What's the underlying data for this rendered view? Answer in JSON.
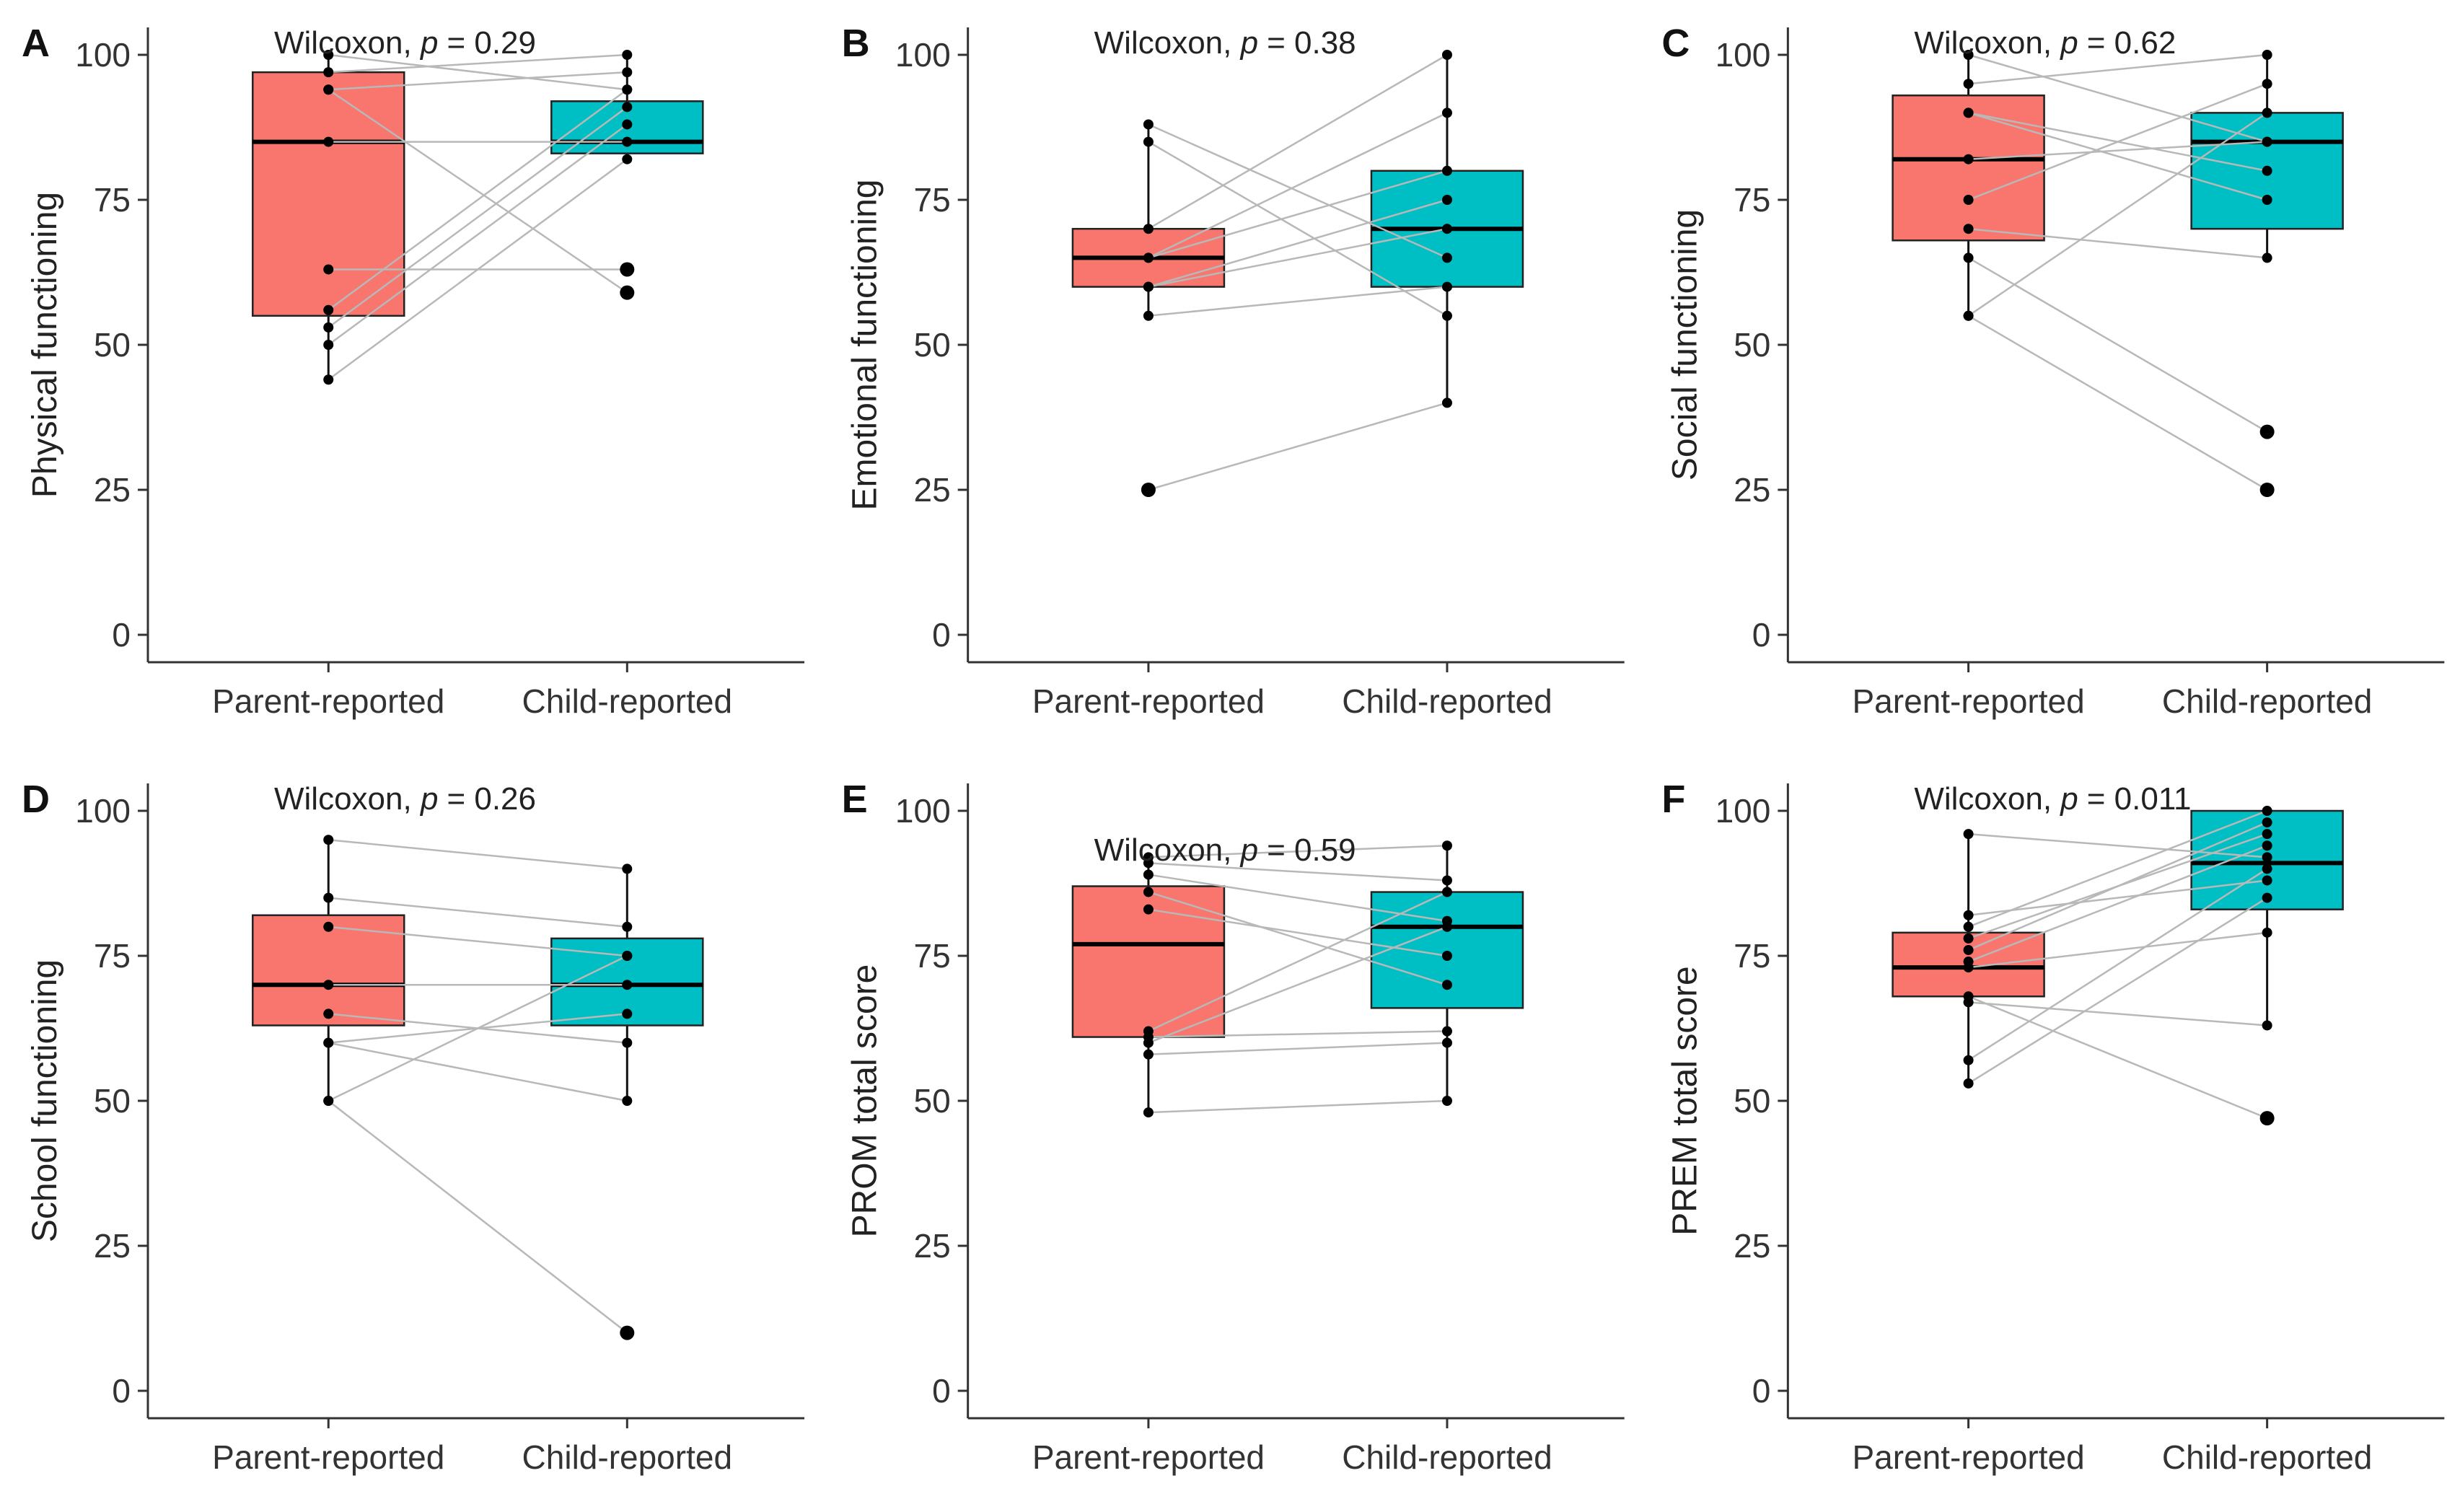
{
  "chart_data": [
    {
      "panel": "A",
      "type": "boxplot",
      "ylabel": "Physical functioning",
      "categories": [
        "Parent-reported",
        "Child-reported"
      ],
      "ylim": [
        0,
        100
      ],
      "yticks": [
        0,
        25,
        50,
        75,
        100
      ],
      "annotation_prefix": "Wilcoxon, ",
      "p_symbol": "p",
      "p_value": "= 0.29",
      "series_colors": [
        "#F8766D",
        "#00BFC4"
      ],
      "boxes": [
        {
          "category": "Parent-reported",
          "q1": 55,
          "median": 85,
          "q3": 97,
          "whisker_low": 44,
          "whisker_high": 100
        },
        {
          "category": "Child-reported",
          "q1": 83,
          "median": 85,
          "q3": 92,
          "whisker_low": 82,
          "whisker_high": 100
        }
      ],
      "outliers": [
        {
          "category": "Child-reported",
          "value": 63
        },
        {
          "category": "Child-reported",
          "value": 59
        }
      ],
      "pairs": [
        [
          97,
          100
        ],
        [
          94,
          97
        ],
        [
          85,
          85
        ],
        [
          63,
          63
        ],
        [
          56,
          94
        ],
        [
          53,
          91
        ],
        [
          50,
          88
        ],
        [
          44,
          82
        ],
        [
          100,
          94
        ],
        [
          94,
          59
        ]
      ]
    },
    {
      "panel": "B",
      "type": "boxplot",
      "ylabel": "Emotional functioning",
      "categories": [
        "Parent-reported",
        "Child-reported"
      ],
      "ylim": [
        0,
        100
      ],
      "yticks": [
        0,
        25,
        50,
        75,
        100
      ],
      "annotation_prefix": "Wilcoxon, ",
      "p_symbol": "p",
      "p_value": "= 0.38",
      "series_colors": [
        "#F8766D",
        "#00BFC4"
      ],
      "boxes": [
        {
          "category": "Parent-reported",
          "q1": 60,
          "median": 65,
          "q3": 70,
          "whisker_low": 55,
          "whisker_high": 88
        },
        {
          "category": "Child-reported",
          "q1": 60,
          "median": 70,
          "q3": 80,
          "whisker_low": 40,
          "whisker_high": 100
        }
      ],
      "outliers": [
        {
          "category": "Parent-reported",
          "value": 25
        }
      ],
      "pairs": [
        [
          88,
          65
        ],
        [
          85,
          55
        ],
        [
          70,
          100
        ],
        [
          65,
          90
        ],
        [
          65,
          80
        ],
        [
          60,
          70
        ],
        [
          60,
          75
        ],
        [
          55,
          60
        ],
        [
          25,
          40
        ]
      ]
    },
    {
      "panel": "C",
      "type": "boxplot",
      "ylabel": "Social functioning",
      "categories": [
        "Parent-reported",
        "Child-reported"
      ],
      "ylim": [
        0,
        100
      ],
      "yticks": [
        0,
        25,
        50,
        75,
        100
      ],
      "annotation_prefix": "Wilcoxon, ",
      "p_symbol": "p",
      "p_value": "= 0.62",
      "series_colors": [
        "#F8766D",
        "#00BFC4"
      ],
      "boxes": [
        {
          "category": "Parent-reported",
          "q1": 68,
          "median": 82,
          "q3": 93,
          "whisker_low": 55,
          "whisker_high": 100
        },
        {
          "category": "Child-reported",
          "q1": 70,
          "median": 85,
          "q3": 90,
          "whisker_low": 65,
          "whisker_high": 100
        }
      ],
      "outliers": [
        {
          "category": "Child-reported",
          "value": 35
        },
        {
          "category": "Child-reported",
          "value": 25
        }
      ],
      "pairs": [
        [
          100,
          85
        ],
        [
          95,
          100
        ],
        [
          90,
          80
        ],
        [
          82,
          85
        ],
        [
          75,
          95
        ],
        [
          70,
          65
        ],
        [
          65,
          35
        ],
        [
          55,
          25
        ],
        [
          55,
          90
        ],
        [
          90,
          75
        ]
      ]
    },
    {
      "panel": "D",
      "type": "boxplot",
      "ylabel": "School functioning",
      "categories": [
        "Parent-reported",
        "Child-reported"
      ],
      "ylim": [
        0,
        100
      ],
      "yticks": [
        0,
        25,
        50,
        75,
        100
      ],
      "annotation_prefix": "Wilcoxon, ",
      "p_symbol": "p",
      "p_value": "= 0.26",
      "series_colors": [
        "#F8766D",
        "#00BFC4"
      ],
      "boxes": [
        {
          "category": "Parent-reported",
          "q1": 63,
          "median": 70,
          "q3": 82,
          "whisker_low": 50,
          "whisker_high": 95
        },
        {
          "category": "Child-reported",
          "q1": 63,
          "median": 70,
          "q3": 78,
          "whisker_low": 50,
          "whisker_high": 90
        }
      ],
      "outliers": [
        {
          "category": "Child-reported",
          "value": 10
        }
      ],
      "pairs": [
        [
          95,
          90
        ],
        [
          85,
          80
        ],
        [
          80,
          75
        ],
        [
          70,
          70
        ],
        [
          65,
          60
        ],
        [
          60,
          50
        ],
        [
          60,
          65
        ],
        [
          50,
          10
        ],
        [
          50,
          75
        ]
      ]
    },
    {
      "panel": "E",
      "type": "boxplot",
      "ylabel": "PROM total score",
      "categories": [
        "Parent-reported",
        "Child-reported"
      ],
      "ylim": [
        0,
        100
      ],
      "yticks": [
        0,
        25,
        50,
        75,
        100
      ],
      "annotation_prefix": "Wilcoxon, ",
      "p_symbol": "p",
      "p_value": "= 0.59",
      "series_colors": [
        "#F8766D",
        "#00BFC4"
      ],
      "boxes": [
        {
          "category": "Parent-reported",
          "q1": 61,
          "median": 77,
          "q3": 87,
          "whisker_low": 48,
          "whisker_high": 92
        },
        {
          "category": "Child-reported",
          "q1": 66,
          "median": 80,
          "q3": 86,
          "whisker_low": 50,
          "whisker_high": 94
        }
      ],
      "outliers": [],
      "pairs": [
        [
          92,
          94
        ],
        [
          91,
          88
        ],
        [
          89,
          81
        ],
        [
          86,
          70
        ],
        [
          83,
          75
        ],
        [
          62,
          86
        ],
        [
          60,
          80
        ],
        [
          58,
          60
        ],
        [
          48,
          50
        ],
        [
          61,
          62
        ]
      ]
    },
    {
      "panel": "F",
      "type": "boxplot",
      "ylabel": "PREM total score",
      "categories": [
        "Parent-reported",
        "Child-reported"
      ],
      "ylim": [
        0,
        100
      ],
      "yticks": [
        0,
        25,
        50,
        75,
        100
      ],
      "annotation_prefix": "Wilcoxon, ",
      "p_symbol": "p",
      "p_value": "= 0.011",
      "series_colors": [
        "#F8766D",
        "#00BFC4"
      ],
      "boxes": [
        {
          "category": "Parent-reported",
          "q1": 68,
          "median": 73,
          "q3": 79,
          "whisker_low": 53,
          "whisker_high": 96
        },
        {
          "category": "Child-reported",
          "q1": 83,
          "median": 91,
          "q3": 100,
          "whisker_low": 63,
          "whisker_high": 100
        }
      ],
      "outliers": [
        {
          "category": "Child-reported",
          "value": 47
        }
      ],
      "pairs": [
        [
          96,
          92
        ],
        [
          82,
          88
        ],
        [
          80,
          100
        ],
        [
          78,
          96
        ],
        [
          76,
          98
        ],
        [
          74,
          94
        ],
        [
          73,
          79
        ],
        [
          68,
          47
        ],
        [
          67,
          63
        ],
        [
          57,
          90
        ],
        [
          53,
          85
        ]
      ]
    }
  ]
}
